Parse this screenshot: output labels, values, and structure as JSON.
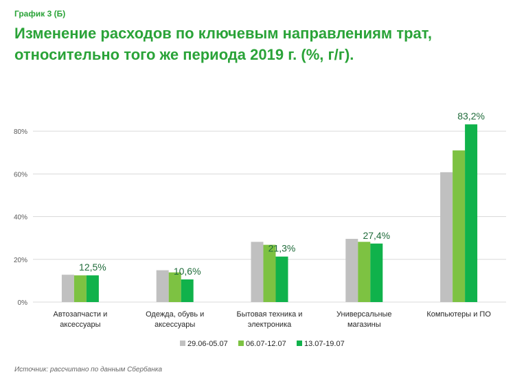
{
  "header": {
    "label": "График 3 (Б)",
    "title_line1": "Изменение расходов по ключевым направлениям трат,",
    "title_line2": "относительно того же периода 2019 г.  (%, г/г)."
  },
  "source": "Источник: рассчитано по данным Сбербанка",
  "colors": {
    "series1": "#c0c0c0",
    "series2": "#7dc242",
    "series3": "#10b24b",
    "grid": "#d9d9d9",
    "axis_text": "#595959",
    "data_label": "#1f6b3a"
  },
  "chart_data": {
    "type": "bar",
    "categories": [
      [
        "Автозапчасти и",
        "аксессуары"
      ],
      [
        "Одежда, обувь и",
        "аксессуары"
      ],
      [
        "Бытовая техника и",
        "электроника"
      ],
      [
        "Универсальные",
        "магазины"
      ],
      [
        "Компьютеры и ПО"
      ]
    ],
    "series": [
      {
        "name": "29.06-05.07",
        "values": [
          12.8,
          14.9,
          28.2,
          29.6,
          60.8
        ]
      },
      {
        "name": "06.07-12.07",
        "values": [
          12.5,
          13.9,
          26.8,
          28.2,
          71.0
        ]
      },
      {
        "name": "13.07-19.07",
        "values": [
          12.5,
          10.6,
          21.3,
          27.4,
          83.2
        ]
      }
    ],
    "data_labels": [
      "12,5%",
      "10,6%",
      "21,3%",
      "27,4%",
      "83,2%"
    ],
    "y_ticks": [
      "0%",
      "20%",
      "40%",
      "60%",
      "80%"
    ],
    "ylim": [
      0,
      90
    ],
    "grid": true,
    "legend_position": "bottom"
  }
}
